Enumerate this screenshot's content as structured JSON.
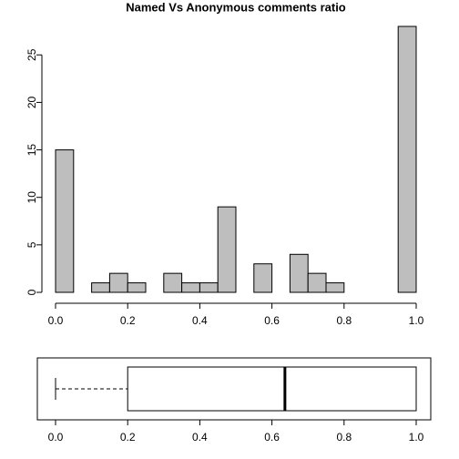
{
  "chart_data": [
    {
      "type": "histogram",
      "title": "Named Vs Anonymous comments ratio",
      "bins": [
        0,
        0.05,
        0.1,
        0.15,
        0.2,
        0.25,
        0.3,
        0.35,
        0.4,
        0.45,
        0.5,
        0.55,
        0.6,
        0.65,
        0.7,
        0.75,
        0.8,
        0.85,
        0.9,
        0.95,
        1
      ],
      "values": [
        15,
        0,
        1,
        2,
        1,
        0,
        2,
        1,
        1,
        9,
        0,
        3,
        0,
        4,
        2,
        1,
        0,
        0,
        0,
        28
      ],
      "color": "#bebebe",
      "xlim": [
        0,
        1
      ],
      "xticks": [
        {
          "value": 0,
          "label": "0.0"
        },
        0.2,
        0.4,
        0.6,
        0.8,
        {
          "value": 1,
          "label": "1.0"
        }
      ],
      "ylim": [
        0,
        28
      ],
      "yticks": [
        0,
        5,
        10,
        15,
        20,
        25
      ]
    },
    {
      "type": "box",
      "min": 0,
      "q1": 0.2,
      "median": 0.636,
      "q3": 1,
      "max": 1,
      "xlim": [
        0,
        1
      ],
      "xticks": [
        {
          "value": 0,
          "label": "0.0"
        },
        0.2,
        0.4,
        0.6,
        0.8,
        {
          "value": 1,
          "label": "1.0"
        }
      ]
    }
  ]
}
